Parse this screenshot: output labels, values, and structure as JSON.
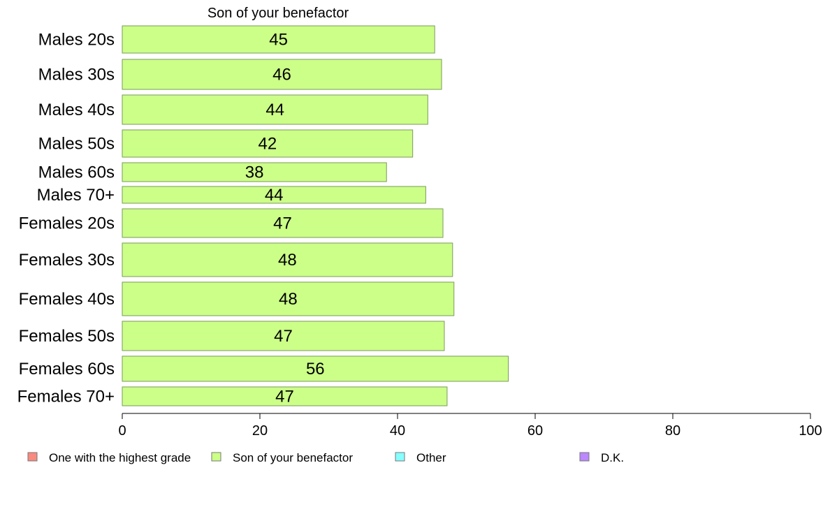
{
  "chart_data": {
    "type": "bar",
    "orientation": "horizontal",
    "title": "Son of your benefactor",
    "xlabel": "",
    "ylabel": "",
    "xlim": [
      0,
      100
    ],
    "xticks": [
      0,
      20,
      40,
      60,
      80,
      100
    ],
    "grid": false,
    "legend_position": "bottom",
    "categories": [
      "Males 20s",
      "Males 30s",
      "Males 40s",
      "Males 50s",
      "Males 60s",
      "Males 70+",
      "Females 20s",
      "Females 30s",
      "Females 40s",
      "Females 50s",
      "Females 60s",
      "Females 70+"
    ],
    "series": [
      {
        "name": "Son of your benefactor",
        "color": "#ccff88",
        "values": [
          45.4,
          46.4,
          44.4,
          42.2,
          38.4,
          44.1,
          46.6,
          48.0,
          48.2,
          46.8,
          56.1,
          47.2
        ],
        "labels": [
          "45",
          "46",
          "44",
          "42",
          "38",
          "44",
          "47",
          "48",
          "48",
          "47",
          "56",
          "47"
        ]
      }
    ],
    "legend": [
      {
        "name": "One with the highest grade",
        "color": "#f88a80"
      },
      {
        "name": "Son of your benefactor",
        "color": "#ccff88"
      },
      {
        "name": "Other",
        "color": "#88ffff"
      },
      {
        "name": "D.K.",
        "color": "#bb88ff"
      }
    ]
  }
}
